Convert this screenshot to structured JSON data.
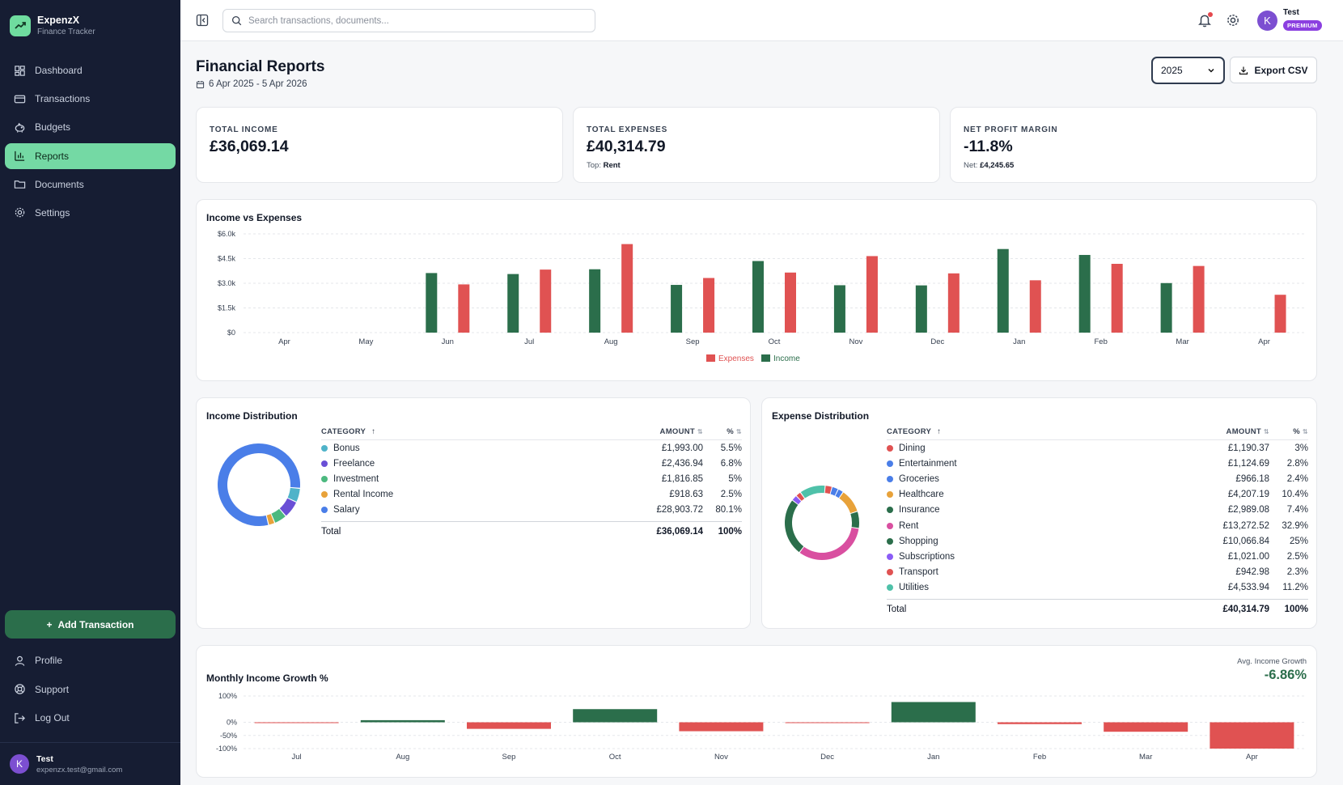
{
  "brand": {
    "name": "ExpenzX",
    "subtitle": "Finance Tracker"
  },
  "sidebar": {
    "items": [
      {
        "label": "Dashboard",
        "icon": "dashboard-icon"
      },
      {
        "label": "Transactions",
        "icon": "card-icon"
      },
      {
        "label": "Budgets",
        "icon": "piggy-bank-icon"
      },
      {
        "label": "Reports",
        "icon": "bar-chart-icon",
        "active": true
      },
      {
        "label": "Documents",
        "icon": "folder-icon"
      },
      {
        "label": "Settings",
        "icon": "gear-icon"
      }
    ],
    "add_button": "Add Transaction",
    "bottom_items": [
      {
        "label": "Profile",
        "icon": "user-icon"
      },
      {
        "label": "Support",
        "icon": "lifebuoy-icon"
      },
      {
        "label": "Log Out",
        "icon": "logout-icon"
      }
    ],
    "user": {
      "initial": "K",
      "name": "Test",
      "email": "expenzx.test@gmail.com"
    }
  },
  "header": {
    "search_placeholder": "Search transactions, documents...",
    "user_initial": "K",
    "user_name": "Test",
    "badge": "PREMIUM"
  },
  "page": {
    "title": "Financial Reports",
    "date_range": "6 Apr 2025 - 5 Apr 2026",
    "year": "2025",
    "export_label": "Export CSV"
  },
  "stats": [
    {
      "label": "TOTAL INCOME",
      "value": "£36,069.14",
      "sub_label": "",
      "sub_value": ""
    },
    {
      "label": "TOTAL EXPENSES",
      "value": "£40,314.79",
      "sub_label": "Top: ",
      "sub_value": "Rent"
    },
    {
      "label": "NET PROFIT MARGIN",
      "value": "-11.8%",
      "sub_label": "Net: ",
      "sub_value": "£4,245.65"
    }
  ],
  "colors": {
    "income": "#2b6e4b",
    "expense": "#e05252",
    "accent": "#74d9a4"
  },
  "chart_data": [
    {
      "type": "bar",
      "title": "Income vs Expenses",
      "categories": [
        "Apr",
        "May",
        "Jun",
        "Jul",
        "Aug",
        "Sep",
        "Oct",
        "Nov",
        "Dec",
        "Jan",
        "Feb",
        "Mar",
        "Apr"
      ],
      "y_ticks": [
        "$0",
        "$1.5k",
        "$3.0k",
        "$4.5k",
        "$6.0k"
      ],
      "ylim": [
        0,
        6000
      ],
      "series": [
        {
          "name": "Income",
          "color": "#2b6e4b",
          "values": [
            0,
            0,
            3620,
            3560,
            3850,
            2900,
            4350,
            2880,
            2870,
            5080,
            4720,
            3010,
            0
          ]
        },
        {
          "name": "Expenses",
          "color": "#e05252",
          "values": [
            0,
            0,
            2930,
            3830,
            5380,
            3320,
            3650,
            4650,
            3600,
            3180,
            4180,
            4050,
            2300
          ]
        }
      ],
      "legend": "bottom"
    },
    {
      "type": "pie",
      "title": "Income Distribution",
      "slices": [
        {
          "label": "Bonus",
          "amount": "£1,993.00",
          "pct": "5.5%",
          "value": 5.5,
          "color": "#4fb3c9"
        },
        {
          "label": "Freelance",
          "amount": "£2,436.94",
          "pct": "6.8%",
          "value": 6.8,
          "color": "#6a4fd6"
        },
        {
          "label": "Investment",
          "amount": "£1,816.85",
          "pct": "5%",
          "value": 5,
          "color": "#4cb97f"
        },
        {
          "label": "Rental Income",
          "amount": "£918.63",
          "pct": "2.5%",
          "value": 2.5,
          "color": "#e8a23a"
        },
        {
          "label": "Salary",
          "amount": "£28,903.72",
          "pct": "80.1%",
          "value": 80.1,
          "color": "#4a7ee8"
        }
      ],
      "total_label": "Total",
      "total_amount": "£36,069.14",
      "total_pct": "100%"
    },
    {
      "type": "pie",
      "title": "Expense Distribution",
      "slices": [
        {
          "label": "Dining",
          "amount": "£1,190.37",
          "pct": "3%",
          "value": 3,
          "color": "#e05252"
        },
        {
          "label": "Entertainment",
          "amount": "£1,124.69",
          "pct": "2.8%",
          "value": 2.8,
          "color": "#4a7ee8"
        },
        {
          "label": "Groceries",
          "amount": "£966.18",
          "pct": "2.4%",
          "value": 2.4,
          "color": "#4a7ee8"
        },
        {
          "label": "Healthcare",
          "amount": "£4,207.19",
          "pct": "10.4%",
          "value": 10.4,
          "color": "#e8a23a"
        },
        {
          "label": "Insurance",
          "amount": "£2,989.08",
          "pct": "7.4%",
          "value": 7.4,
          "color": "#2b6e4b"
        },
        {
          "label": "Rent",
          "amount": "£13,272.52",
          "pct": "32.9%",
          "value": 32.9,
          "color": "#d94fa0"
        },
        {
          "label": "Shopping",
          "amount": "£10,066.84",
          "pct": "25%",
          "value": 25,
          "color": "#2b6e4b"
        },
        {
          "label": "Subscriptions",
          "amount": "£1,021.00",
          "pct": "2.5%",
          "value": 2.5,
          "color": "#8b5cf6"
        },
        {
          "label": "Transport",
          "amount": "£942.98",
          "pct": "2.3%",
          "value": 2.3,
          "color": "#e05252"
        },
        {
          "label": "Utilities",
          "amount": "£4,533.94",
          "pct": "11.2%",
          "value": 11.2,
          "color": "#4fc1a9"
        }
      ],
      "total_label": "Total",
      "total_amount": "£40,314.79",
      "total_pct": "100%"
    },
    {
      "type": "bar",
      "title": "Monthly Income Growth %",
      "categories": [
        "Jul",
        "Aug",
        "Sep",
        "Oct",
        "Nov",
        "Dec",
        "Jan",
        "Feb",
        "Mar",
        "Apr"
      ],
      "y_ticks": [
        "-100%",
        "-50%",
        "0%",
        "100%"
      ],
      "ylim": [
        -100,
        100
      ],
      "values": [
        -1.7,
        8,
        -25,
        50,
        -34,
        -0.3,
        77,
        -7,
        -36,
        -100
      ],
      "avg_label": "Avg. Income Growth",
      "avg_value": "-6.86%"
    }
  ]
}
